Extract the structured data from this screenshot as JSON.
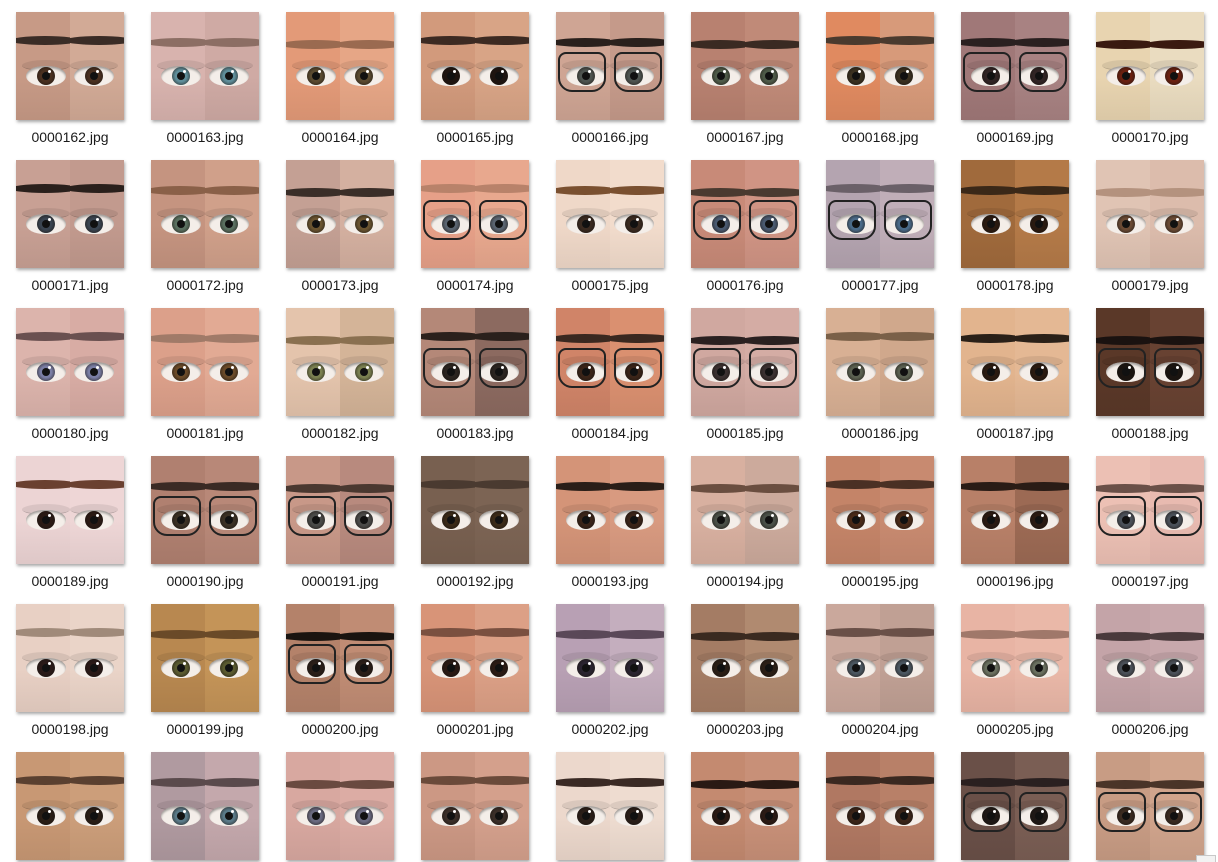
{
  "window": {
    "view": "Large icons"
  },
  "files": [
    {
      "name": "0000162.jpg",
      "skin": "#c79a86",
      "skin2": "#d2aa96",
      "brow": "#3a2c26",
      "iris": "#4a3020",
      "glasses": false
    },
    {
      "name": "0000163.jpg",
      "skin": "#d8b3ae",
      "skin2": "#cfaaa4",
      "brow": "#8c6e64",
      "iris": "#5f8e9a",
      "glasses": false
    },
    {
      "name": "0000164.jpg",
      "skin": "#e39a78",
      "skin2": "#e6a686",
      "brow": "#9a6a50",
      "iris": "#5a4a30",
      "glasses": false
    },
    {
      "name": "0000165.jpg",
      "skin": "#d29a7c",
      "skin2": "#d8a486",
      "brow": "#3c2a22",
      "iris": "#1e1410",
      "glasses": false
    },
    {
      "name": "0000166.jpg",
      "skin": "#cfa594",
      "skin2": "#c59a8a",
      "brow": "#2a201c",
      "iris": "#4e5450",
      "glasses": true
    },
    {
      "name": "0000167.jpg",
      "skin": "#b88170",
      "skin2": "#c08a78",
      "brow": "#3a2a22",
      "iris": "#4e5a48",
      "glasses": false
    },
    {
      "name": "0000168.jpg",
      "skin": "#e08a60",
      "skin2": "#d79a7a",
      "brow": "#4a3a2e",
      "iris": "#3a3020",
      "glasses": false
    },
    {
      "name": "0000169.jpg",
      "skin": "#a07878",
      "skin2": "#a88282",
      "brow": "#2a2020",
      "iris": "#302424",
      "glasses": true
    },
    {
      "name": "0000170.jpg",
      "skin": "#e8d4b0",
      "skin2": "#eadcc0",
      "brow": "#3a1a10",
      "iris": "#6a2010",
      "glasses": false
    },
    {
      "name": "0000171.jpg",
      "skin": "#c8a094",
      "skin2": "#c29a8e",
      "brow": "#2a201c",
      "iris": "#3a4450",
      "glasses": false
    },
    {
      "name": "0000172.jpg",
      "skin": "#c59480",
      "skin2": "#d0a08a",
      "brow": "#8a6048",
      "iris": "#5a7060",
      "glasses": false
    },
    {
      "name": "0000173.jpg",
      "skin": "#c4a094",
      "skin2": "#d4b0a0",
      "brow": "#3a2e28",
      "iris": "#6a5430",
      "glasses": false
    },
    {
      "name": "0000174.jpg",
      "skin": "#e6a088",
      "skin2": "#e8a88e",
      "brow": "#b8826a",
      "iris": "#5a6470",
      "glasses": true
    },
    {
      "name": "0000175.jpg",
      "skin": "#efd8c8",
      "skin2": "#f2dccc",
      "brow": "#7a5030",
      "iris": "#3a2a20",
      "glasses": false
    },
    {
      "name": "0000176.jpg",
      "skin": "#c88a78",
      "skin2": "#d09484",
      "brow": "#4a3a30",
      "iris": "#4a5a70",
      "glasses": true
    },
    {
      "name": "0000177.jpg",
      "skin": "#b4a4b0",
      "skin2": "#c0aeb8",
      "brow": "#6a6068",
      "iris": "#4a6a88",
      "glasses": true
    },
    {
      "name": "0000178.jpg",
      "skin": "#a06a3c",
      "skin2": "#b47a48",
      "brow": "#3a2818",
      "iris": "#2a1a10",
      "glasses": false
    },
    {
      "name": "0000179.jpg",
      "skin": "#e0c4b4",
      "skin2": "#dcbcac",
      "brow": "#b4927e",
      "iris": "#6a4a34",
      "glasses": false
    },
    {
      "name": "0000180.jpg",
      "skin": "#dcb4ac",
      "skin2": "#d8aca4",
      "brow": "#6a5050",
      "iris": "#7a7ea4",
      "glasses": false
    },
    {
      "name": "0000181.jpg",
      "skin": "#dca08a",
      "skin2": "#e2aa94",
      "brow": "#a07a68",
      "iris": "#6a4a28",
      "glasses": false
    },
    {
      "name": "0000182.jpg",
      "skin": "#e4c4ac",
      "skin2": "#d4b498",
      "brow": "#8a7050",
      "iris": "#7a8050",
      "glasses": false
    },
    {
      "name": "0000183.jpg",
      "skin": "#b48878",
      "skin2": "#8c6a60",
      "brow": "#2a201c",
      "iris": "#2a2420",
      "glasses": true
    },
    {
      "name": "0000184.jpg",
      "skin": "#d08468",
      "skin2": "#da9070",
      "brow": "#3a2820",
      "iris": "#3a2418",
      "glasses": true
    },
    {
      "name": "0000185.jpg",
      "skin": "#d0a8a0",
      "skin2": "#d4aca4",
      "brow": "#2a2020",
      "iris": "#3a3030",
      "glasses": true
    },
    {
      "name": "0000186.jpg",
      "skin": "#d8b094",
      "skin2": "#d0a88c",
      "brow": "#7a6048",
      "iris": "#5a6050",
      "glasses": false
    },
    {
      "name": "0000187.jpg",
      "skin": "#e2b48e",
      "skin2": "#e4b894",
      "brow": "#2a2018",
      "iris": "#2a1a10",
      "glasses": false
    },
    {
      "name": "0000188.jpg",
      "skin": "#5a3828",
      "skin2": "#684232",
      "brow": "#1a1210",
      "iris": "#1a1410",
      "glasses": true
    },
    {
      "name": "0000189.jpg",
      "skin": "#ecd4d4",
      "skin2": "#eed6d6",
      "brow": "#6a4030",
      "iris": "#2a1a14",
      "glasses": false
    },
    {
      "name": "0000190.jpg",
      "skin": "#b08070",
      "skin2": "#b88878",
      "brow": "#3a2a24",
      "iris": "#3a3024",
      "glasses": true
    },
    {
      "name": "0000191.jpg",
      "skin": "#c89888",
      "skin2": "#b88a7e",
      "brow": "#4a3830",
      "iris": "#4a4a48",
      "glasses": true
    },
    {
      "name": "0000192.jpg",
      "skin": "#786050",
      "skin2": "#7c6454",
      "brow": "#4a3a30",
      "iris": "#3a2a18",
      "glasses": false
    },
    {
      "name": "0000193.jpg",
      "skin": "#d49478",
      "skin2": "#d89a80",
      "brow": "#2a1e18",
      "iris": "#3a2418",
      "glasses": false
    },
    {
      "name": "0000194.jpg",
      "skin": "#d8b0a0",
      "skin2": "#ccaa9c",
      "brow": "#6a4e40",
      "iris": "#4a5048",
      "glasses": false
    },
    {
      "name": "0000195.jpg",
      "skin": "#c48468",
      "skin2": "#c88a70",
      "brow": "#4a3024",
      "iris": "#4a2a18",
      "glasses": false
    },
    {
      "name": "0000196.jpg",
      "skin": "#b88068",
      "skin2": "#9c6a54",
      "brow": "#2a1c16",
      "iris": "#2a1a12",
      "glasses": false
    },
    {
      "name": "0000197.jpg",
      "skin": "#ecc0b4",
      "skin2": "#e8bab0",
      "brow": "#6a5048",
      "iris": "#4a5058",
      "glasses": true
    },
    {
      "name": "0000198.jpg",
      "skin": "#e8d0c4",
      "skin2": "#ead4c8",
      "brow": "#a08a7a",
      "iris": "#2a1a18",
      "glasses": false
    },
    {
      "name": "0000199.jpg",
      "skin": "#b88850",
      "skin2": "#c49458",
      "brow": "#6a4a28",
      "iris": "#5a5a30",
      "glasses": false
    },
    {
      "name": "0000200.jpg",
      "skin": "#b4826a",
      "skin2": "#c08c74",
      "brow": "#1a1410",
      "iris": "#2a1e18",
      "glasses": true
    },
    {
      "name": "0000201.jpg",
      "skin": "#d89478",
      "skin2": "#dca086",
      "brow": "#7a5040",
      "iris": "#2a1a14",
      "glasses": false
    },
    {
      "name": "0000202.jpg",
      "skin": "#b8a0b4",
      "skin2": "#c4aebe",
      "brow": "#5a4858",
      "iris": "#2a2430",
      "glasses": false
    },
    {
      "name": "0000203.jpg",
      "skin": "#a47c64",
      "skin2": "#b08a70",
      "brow": "#3a2a20",
      "iris": "#2a1e16",
      "glasses": false
    },
    {
      "name": "0000204.jpg",
      "skin": "#caa89c",
      "skin2": "#c0a094",
      "brow": "#6a5048",
      "iris": "#4a5660",
      "glasses": false
    },
    {
      "name": "0000205.jpg",
      "skin": "#e8b4a4",
      "skin2": "#eab8a8",
      "brow": "#a0786a",
      "iris": "#6a7060",
      "glasses": false
    },
    {
      "name": "0000206.jpg",
      "skin": "#c4a4a8",
      "skin2": "#c8a8ac",
      "brow": "#4a3a3c",
      "iris": "#4a5058",
      "glasses": false
    },
    {
      "name": "",
      "skin": "#c89874",
      "skin2": "#cc9e7a",
      "brow": "#5a4030",
      "iris": "#2a1e16",
      "glasses": false
    },
    {
      "name": "",
      "skin": "#b09aa0",
      "skin2": "#c4a8ac",
      "brow": "#5a4a4c",
      "iris": "#5a7a88",
      "glasses": false
    },
    {
      "name": "",
      "skin": "#d8a8a0",
      "skin2": "#dcaca4",
      "brow": "#6a4a40",
      "iris": "#6a6a80",
      "glasses": false
    },
    {
      "name": "",
      "skin": "#cc9884",
      "skin2": "#d4a08c",
      "brow": "#6a4a3a",
      "iris": "#3a2e28",
      "glasses": false
    },
    {
      "name": "",
      "skin": "#ecd8cc",
      "skin2": "#eedcd0",
      "brow": "#3a2a24",
      "iris": "#2a1e18",
      "glasses": false
    },
    {
      "name": "",
      "skin": "#c48a70",
      "skin2": "#c89078",
      "brow": "#2a1a14",
      "iris": "#2a1a14",
      "glasses": false
    },
    {
      "name": "",
      "skin": "#b07862",
      "skin2": "#b88068",
      "brow": "#3a2820",
      "iris": "#3a2418",
      "glasses": false
    },
    {
      "name": "",
      "skin": "#6a5048",
      "skin2": "#7a5e54",
      "brow": "#2a2020",
      "iris": "#1e1816",
      "glasses": true
    },
    {
      "name": "",
      "skin": "#c89c84",
      "skin2": "#d0a48c",
      "brow": "#4a3428",
      "iris": "#3a2a20",
      "glasses": true
    }
  ]
}
